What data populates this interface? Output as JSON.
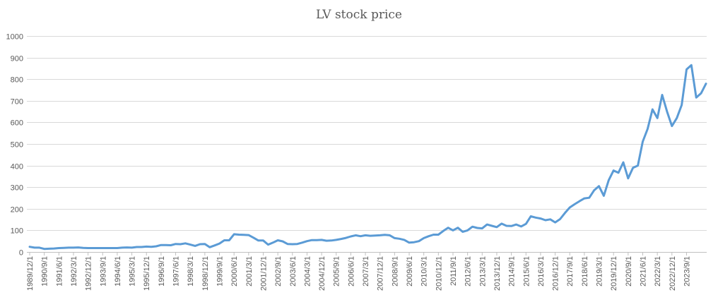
{
  "chart_data": {
    "type": "line",
    "title": "LV stock price",
    "xlabel": "",
    "ylabel": "",
    "ylim": [
      0,
      1000
    ],
    "yticks": [
      0,
      100,
      200,
      300,
      400,
      500,
      600,
      700,
      800,
      900,
      1000
    ],
    "grid": "horizontal",
    "legend": "none",
    "colors": {
      "series": "#5b9bd5",
      "grid": "#d9d9d9",
      "text": "#595959"
    },
    "x_tick_labels": [
      "1989/12/1",
      "1990/9/1",
      "1991/6/1",
      "1992/3/1",
      "1992/12/1",
      "1993/9/1",
      "1994/6/1",
      "1995/3/1",
      "1995/12/1",
      "1996/9/1",
      "1997/6/1",
      "1998/3/1",
      "1998/12/1",
      "1999/9/1",
      "2000/6/1",
      "2001/3/1",
      "2001/12/1",
      "2002/9/1",
      "2003/6/1",
      "2004/3/1",
      "2004/12/1",
      "2005/9/1",
      "2006/6/1",
      "2007/3/1",
      "2007/12/1",
      "2008/9/1",
      "2009/6/1",
      "2010/3/1",
      "2010/12/1",
      "2011/9/1",
      "2012/6/1",
      "2013/3/1",
      "2013/12/1",
      "2014/9/1",
      "2015/6/1",
      "2016/3/1",
      "2016/12/1",
      "2017/9/1",
      "2018/6/1",
      "2019/3/1",
      "2019/12/1",
      "2020/9/1",
      "2021/6/1",
      "2022/3/1",
      "2022/12/1",
      "2023/9/1"
    ],
    "series": [
      {
        "values": [
          24,
          20,
          20,
          14,
          15,
          16,
          18,
          19,
          20,
          20,
          21,
          19,
          18,
          18,
          18,
          18,
          18,
          18,
          18,
          20,
          21,
          20,
          23,
          23,
          25,
          24,
          26,
          32,
          32,
          31,
          37,
          36,
          40,
          34,
          28,
          36,
          37,
          22,
          30,
          39,
          54,
          54,
          82,
          80,
          79,
          78,
          66,
          53,
          53,
          34,
          43,
          54,
          49,
          37,
          36,
          37,
          43,
          50,
          55,
          55,
          56,
          52,
          53,
          56,
          60,
          65,
          72,
          77,
          73,
          77,
          75,
          76,
          77,
          79,
          77,
          64,
          61,
          56,
          43,
          45,
          50,
          64,
          73,
          80,
          80,
          97,
          112,
          100,
          112,
          93,
          100,
          117,
          111,
          109,
          127,
          121,
          115,
          131,
          121,
          120,
          127,
          118,
          130,
          165,
          159,
          155,
          147,
          151,
          137,
          152,
          180,
          206,
          221,
          235,
          248,
          251,
          285,
          305,
          260,
          332,
          377,
          367,
          415,
          341,
          390,
          400,
          511,
          570,
          660,
          620,
          727,
          650,
          583,
          620,
          680,
          845,
          865,
          715,
          735,
          779
        ]
      }
    ]
  }
}
